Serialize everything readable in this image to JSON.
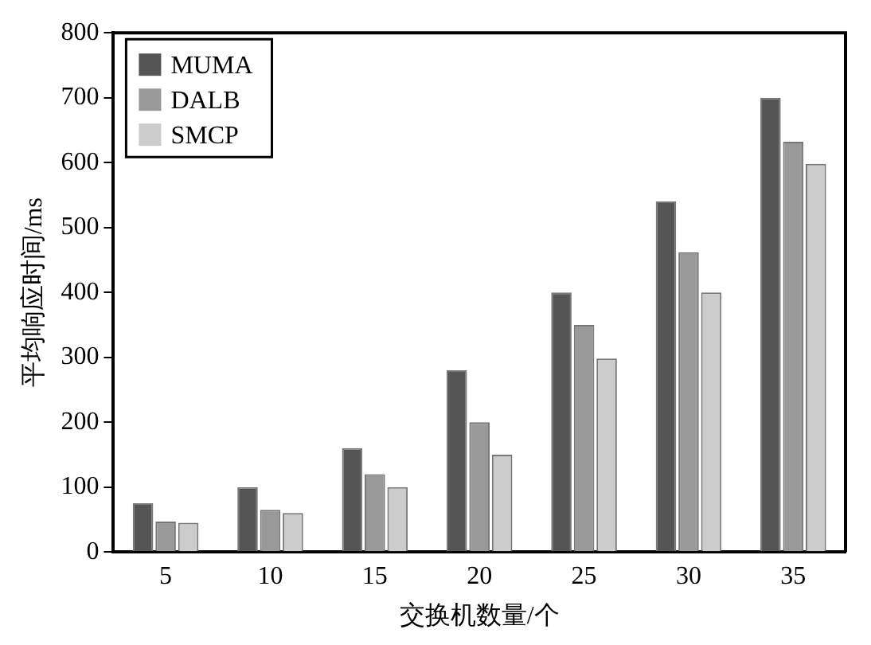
{
  "chart_data": {
    "type": "bar",
    "xlabel": "交换机数量/个",
    "ylabel": "平均响应时间/ms",
    "categories": [
      "5",
      "10",
      "15",
      "20",
      "25",
      "30",
      "35"
    ],
    "series": [
      {
        "name": "MUMA",
        "color": "#555555",
        "values": [
          75,
          100,
          160,
          280,
          400,
          540,
          700
        ]
      },
      {
        "name": "DALB",
        "color": "#999999",
        "values": [
          47,
          65,
          120,
          200,
          350,
          462,
          632
        ]
      },
      {
        "name": "SMCP",
        "color": "#cccccc",
        "values": [
          45,
          60,
          100,
          150,
          298,
          400,
          598
        ]
      }
    ],
    "ylim": [
      0,
      800
    ],
    "yticks": [
      0,
      100,
      200,
      300,
      400,
      500,
      600,
      700,
      800
    ],
    "grid": false,
    "legend": "top left"
  }
}
